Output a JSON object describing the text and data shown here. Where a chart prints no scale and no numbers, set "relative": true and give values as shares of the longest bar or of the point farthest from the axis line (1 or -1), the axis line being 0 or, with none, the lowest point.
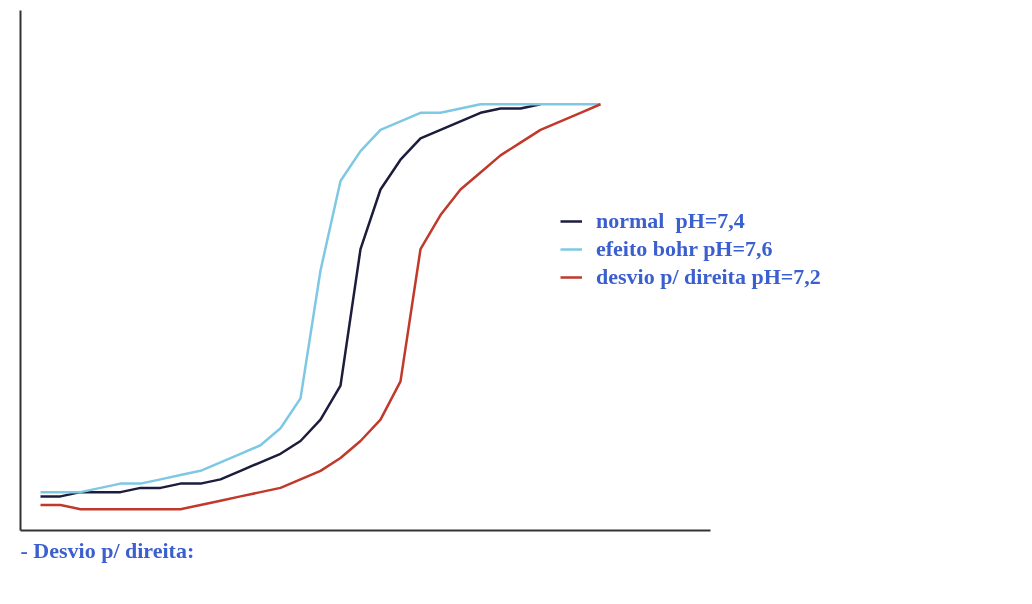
{
  "chart_data": {
    "type": "line",
    "relative": true,
    "legend": "right",
    "grid": false,
    "marker": "none",
    "line_style": "solid",
    "categories": [
      null,
      null,
      null,
      null,
      null,
      null,
      null,
      null,
      null,
      null,
      null,
      null,
      null,
      null,
      null,
      null,
      null,
      null,
      null,
      null,
      null,
      null,
      null,
      null,
      null,
      null,
      null,
      null,
      null
    ],
    "series": [
      {
        "name": "normal  pH=7,4",
        "color": "#1c1c3c",
        "values": [
          0.08,
          0.08,
          0.09,
          0.09,
          0.09,
          0.1,
          0.1,
          0.11,
          0.11,
          0.12,
          0.14,
          0.16,
          0.18,
          0.21,
          0.26,
          0.34,
          0.66,
          0.8,
          0.87,
          0.92,
          0.94,
          0.96,
          0.98,
          0.99,
          0.99,
          1,
          null,
          null,
          null
        ]
      },
      {
        "name": "efeito bohr pH=7,6",
        "color": "#7ec8e3",
        "values": [
          0.09,
          0.09,
          0.09,
          0.1,
          0.11,
          0.11,
          0.12,
          0.13,
          0.14,
          0.16,
          0.18,
          0.2,
          0.24,
          0.31,
          0.61,
          0.82,
          0.89,
          0.94,
          0.96,
          0.98,
          0.98,
          0.99,
          1,
          1,
          1,
          1,
          1,
          1,
          1
        ]
      },
      {
        "name": "desvio p/ direita pH=7,2",
        "color": "#c0392b",
        "values": [
          0.06,
          0.06,
          0.05,
          0.05,
          0.05,
          0.05,
          0.05,
          0.05,
          0.06,
          0.07,
          0.08,
          0.09,
          0.1,
          0.12,
          0.14,
          0.17,
          0.21,
          0.26,
          0.35,
          0.66,
          0.74,
          0.8,
          0.84,
          0.88,
          0.91,
          0.94,
          0.96,
          0.98,
          1
        ]
      }
    ],
    "annotations": [
      "- Desvio p/ direita:"
    ]
  }
}
